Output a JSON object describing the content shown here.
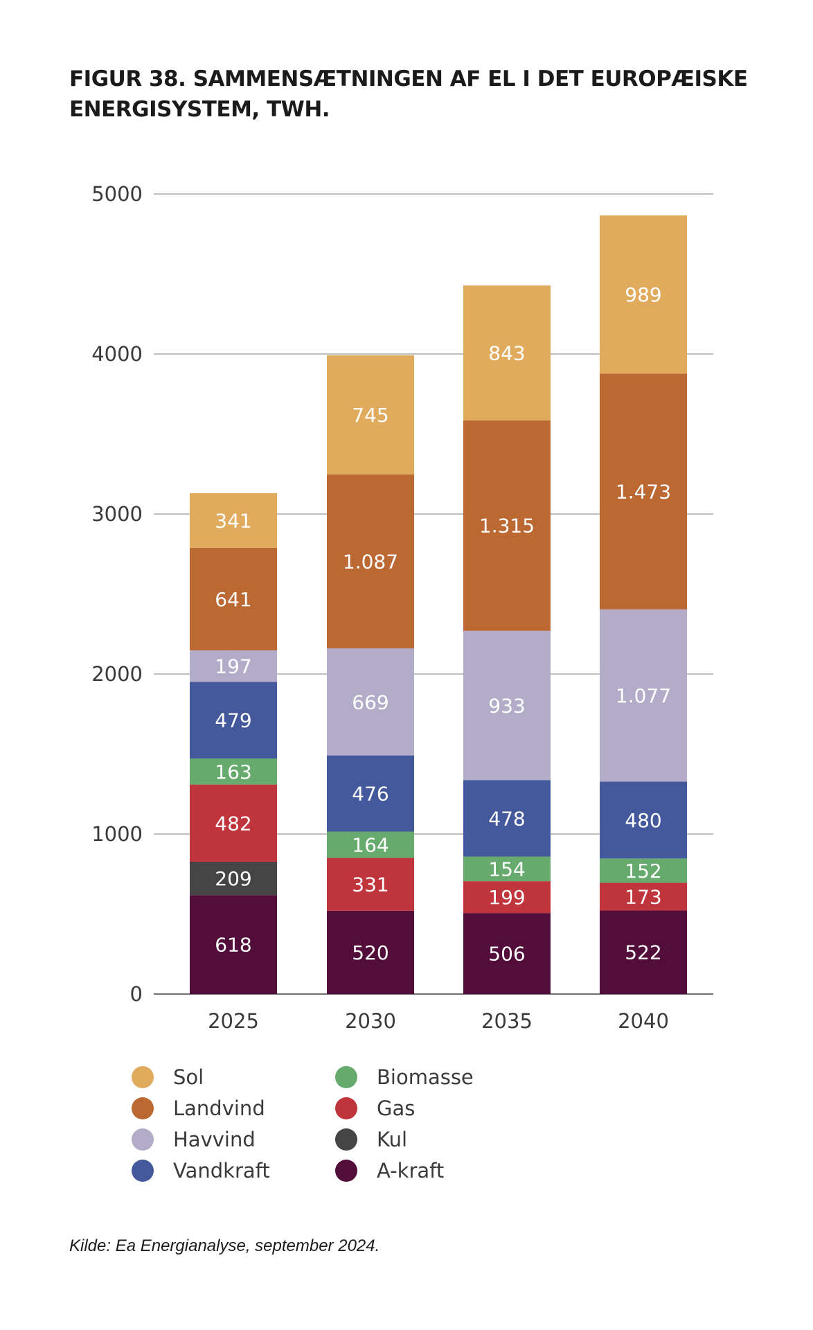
{
  "title_line1": "FIGUR 38. SAMMENSÆTNINGEN AF EL I DET EUROPÆISKE",
  "title_line2": "ENERGISYSTEM, TWH.",
  "source": "Kilde: Ea Energianalyse, september 2024.",
  "chart_data": {
    "type": "bar",
    "stacked": true,
    "title": "FIGUR 38. SAMMENSÆTNINGEN AF EL I DET EUROPÆISKE ENERGISYSTEM, TWH.",
    "xlabel": "",
    "ylabel": "",
    "ylim": [
      0,
      5000
    ],
    "yticks": [
      "0",
      "1000",
      "2000",
      "3000",
      "4000",
      "5000"
    ],
    "grid": true,
    "legend_position": "bottom",
    "categories": [
      "2025",
      "2030",
      "2035",
      "2040"
    ],
    "series": [
      {
        "name": "A-kraft",
        "color": "#530d3a",
        "values": [
          618,
          520,
          506,
          522
        ],
        "labels": [
          "618",
          "520",
          "506",
          "522"
        ]
      },
      {
        "name": "Kul",
        "color": "#454545",
        "values": [
          209,
          0,
          0,
          0
        ],
        "labels": [
          "209",
          "",
          "",
          ""
        ]
      },
      {
        "name": "Gas",
        "color": "#c0343c",
        "values": [
          482,
          331,
          199,
          173
        ],
        "labels": [
          "482",
          "331",
          "199",
          "173"
        ]
      },
      {
        "name": "Biomasse",
        "color": "#66aa6d",
        "values": [
          163,
          164,
          154,
          152
        ],
        "labels": [
          "163",
          "164",
          "154",
          "152"
        ]
      },
      {
        "name": "Vandkraft",
        "color": "#43599c",
        "values": [
          479,
          476,
          478,
          480
        ],
        "labels": [
          "479",
          "476",
          "478",
          "480"
        ]
      },
      {
        "name": "Havvind",
        "color": "#b3acc9",
        "values": [
          197,
          669,
          933,
          1077
        ],
        "labels": [
          "197",
          "669",
          "933",
          "1.077"
        ]
      },
      {
        "name": "Landvind",
        "color": "#bb6833",
        "values": [
          641,
          1087,
          1315,
          1473
        ],
        "labels": [
          "641",
          "1.087",
          "1.315",
          "1.473"
        ]
      },
      {
        "name": "Sol",
        "color": "#e1ab5e",
        "values": [
          341,
          745,
          843,
          989
        ],
        "labels": [
          "341",
          "745",
          "843",
          "989"
        ]
      }
    ],
    "legend": [
      "Sol",
      "Landvind",
      "Havvind",
      "Vandkraft",
      "Biomasse",
      "Gas",
      "Kul",
      "A-kraft"
    ]
  }
}
